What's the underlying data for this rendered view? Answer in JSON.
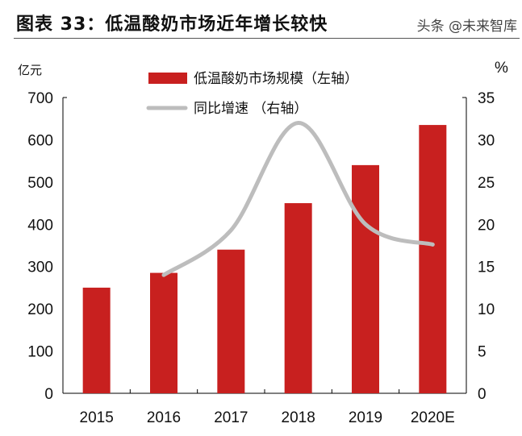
{
  "title": "图表 33：低温酸奶市场近年增长较快",
  "watermark": "头条 @未来智库",
  "chart_data": {
    "type": "bar+line",
    "categories": [
      "2015",
      "2016",
      "2017",
      "2018",
      "2019",
      "2020E"
    ],
    "series": [
      {
        "name": "低温酸奶市场规模（左轴）",
        "type": "bar",
        "axis": "left",
        "color": "#c8201f",
        "values": [
          250,
          285,
          340,
          450,
          540,
          635
        ]
      },
      {
        "name": "同比增速 （右轴）",
        "type": "line",
        "axis": "right",
        "color": "#bdbdbd",
        "values": [
          null,
          14,
          19.3,
          32,
          20,
          17.6
        ]
      }
    ],
    "left_axis": {
      "label": "亿元",
      "range": [
        0,
        700
      ],
      "ticks": [
        0,
        100,
        200,
        300,
        400,
        500,
        600,
        700
      ]
    },
    "right_axis": {
      "label": "%",
      "range": [
        0,
        35
      ],
      "ticks": [
        0,
        5,
        10,
        15,
        20,
        25,
        30,
        35
      ]
    },
    "legend_placement": "top-center",
    "grid": false
  }
}
